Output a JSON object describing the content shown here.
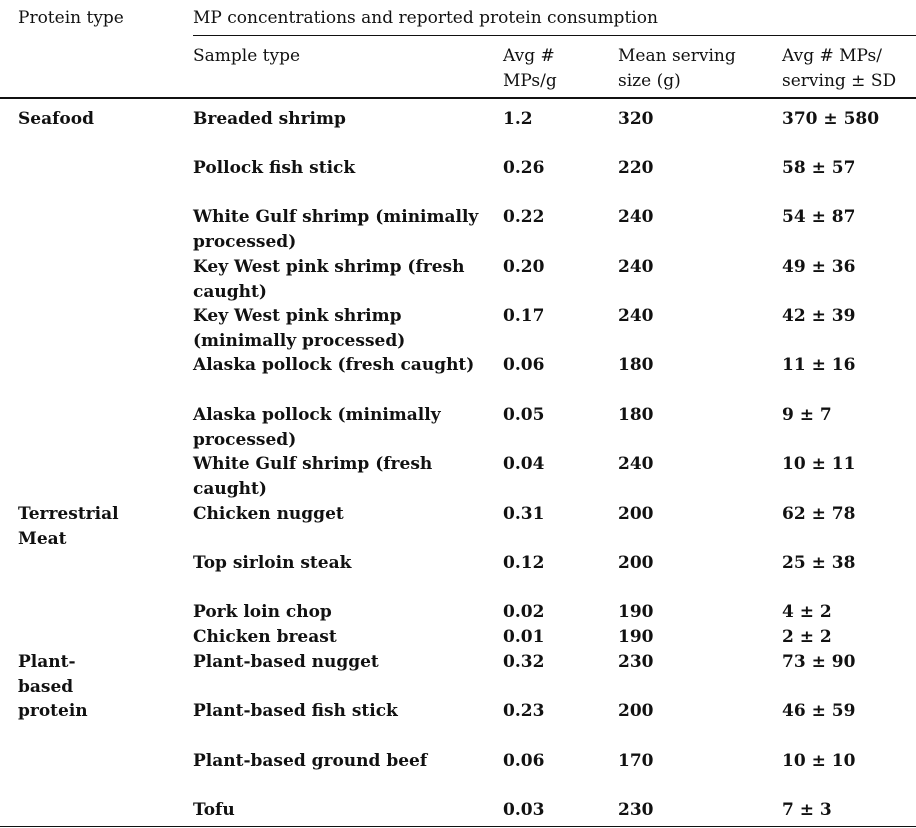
{
  "header": {
    "protein_type": "Protein type",
    "group_title": "MP concentrations and reported protein consumption",
    "sample_type": "Sample type",
    "avg_mps_g": [
      "Avg #",
      "MPs/g"
    ],
    "mean_serving": [
      "Mean serving",
      "size (g)"
    ],
    "avg_mps_serving": [
      "Avg # MPs/",
      "serving ± SD"
    ]
  },
  "rows": [
    {
      "group": "Seafood",
      "sample": "Breaded shrimp",
      "mps_g": "1.2",
      "serving": "320",
      "per_serving": "370 ± 580"
    },
    {
      "group": "",
      "sample": "Pollock fish stick",
      "mps_g": "0.26",
      "serving": "220",
      "per_serving": "58 ± 57"
    },
    {
      "group": "",
      "sample": "White Gulf shrimp (minimally processed)",
      "mps_g": "0.22",
      "serving": "240",
      "per_serving": "54 ± 87"
    },
    {
      "group": "",
      "sample": "Key West pink shrimp (fresh caught)",
      "mps_g": "0.20",
      "serving": "240",
      "per_serving": "49 ± 36"
    },
    {
      "group": "",
      "sample": "Key West pink shrimp (minimally processed)",
      "mps_g": "0.17",
      "serving": "240",
      "per_serving": "42 ± 39"
    },
    {
      "group": "",
      "sample": "Alaska pollock (fresh caught)",
      "mps_g": "0.06",
      "serving": "180",
      "per_serving": "11 ± 16"
    },
    {
      "group": "",
      "sample": "Alaska pollock (minimally processed)",
      "mps_g": "0.05",
      "serving": "180",
      "per_serving": "9 ± 7"
    },
    {
      "group": "",
      "sample": "White Gulf shrimp (fresh caught)",
      "mps_g": "0.04",
      "serving": "240",
      "per_serving": "10 ± 11"
    },
    {
      "group": "Terrestrial Meat",
      "sample": "Chicken nugget",
      "mps_g": "0.31",
      "serving": "200",
      "per_serving": "62 ± 78"
    },
    {
      "group": "",
      "sample": "Top sirloin steak",
      "mps_g": "0.12",
      "serving": "200",
      "per_serving": "25 ± 38"
    },
    {
      "group": "",
      "sample": "Pork loin chop",
      "mps_g": "0.02",
      "serving": "190",
      "per_serving": "4 ± 2"
    },
    {
      "group": "",
      "sample": "Chicken breast",
      "mps_g": "0.01",
      "serving": "190",
      "per_serving": "2 ± 2"
    },
    {
      "group": "Plant-based protein",
      "sample": "Plant-based nugget",
      "mps_g": "0.32",
      "serving": "230",
      "per_serving": "73 ± 90"
    },
    {
      "group": "",
      "sample": "Plant-based fish stick",
      "mps_g": "0.23",
      "serving": "200",
      "per_serving": "46 ± 59"
    },
    {
      "group": "",
      "sample": "Plant-based ground beef",
      "mps_g": "0.06",
      "serving": "170",
      "per_serving": "10 ± 10"
    },
    {
      "group": "",
      "sample": "Tofu",
      "mps_g": "0.03",
      "serving": "230",
      "per_serving": "7 ± 3"
    }
  ]
}
